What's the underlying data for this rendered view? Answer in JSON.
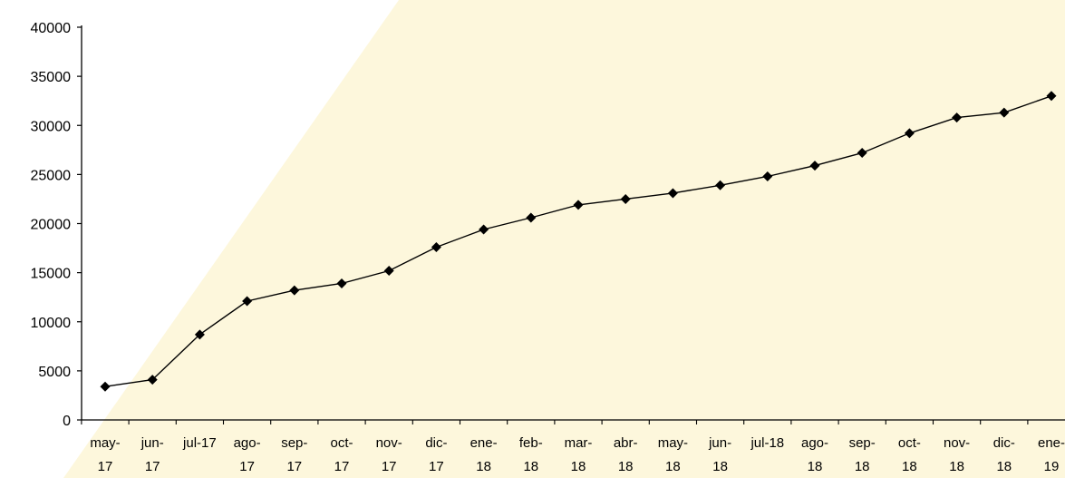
{
  "colors": {
    "plot_background": "#fdf7dc",
    "line": "#000000",
    "marker": "#000000"
  },
  "chart_data": {
    "type": "line",
    "title": "",
    "xlabel": "",
    "ylabel": "",
    "ylim": [
      0,
      40000
    ],
    "yticks": [
      0,
      5000,
      10000,
      15000,
      20000,
      25000,
      30000,
      35000,
      40000
    ],
    "grid": false,
    "legend": "none",
    "marker": "diamond",
    "categories": [
      "may-17",
      "jun-17",
      "jul-17",
      "ago-17",
      "sep-17",
      "oct-17",
      "nov-17",
      "dic-17",
      "ene-18",
      "feb-18",
      "mar-18",
      "abr-18",
      "may-18",
      "jun-18",
      "jul-18",
      "ago-18",
      "sep-18",
      "oct-18",
      "nov-18",
      "dic-18",
      "ene-19"
    ],
    "tick_lines": [
      [
        "may-",
        "17"
      ],
      [
        "jun-",
        "17"
      ],
      [
        "jul-17",
        ""
      ],
      [
        "ago-",
        "17"
      ],
      [
        "sep-",
        "17"
      ],
      [
        "oct-",
        "17"
      ],
      [
        "nov-",
        "17"
      ],
      [
        "dic-",
        "17"
      ],
      [
        "ene-",
        "18"
      ],
      [
        "feb-",
        "18"
      ],
      [
        "mar-",
        "18"
      ],
      [
        "abr-",
        "18"
      ],
      [
        "may-",
        "18"
      ],
      [
        "jun-",
        "18"
      ],
      [
        "jul-18",
        ""
      ],
      [
        "ago-",
        "18"
      ],
      [
        "sep-",
        "18"
      ],
      [
        "oct-",
        "18"
      ],
      [
        "nov-",
        "18"
      ],
      [
        "dic-",
        "18"
      ],
      [
        "ene-",
        "19"
      ]
    ],
    "series": [
      {
        "values": [
          3400,
          4100,
          8700,
          12100,
          13200,
          13900,
          15200,
          17600,
          19400,
          20600,
          21900,
          22500,
          23100,
          23900,
          24800,
          25900,
          27200,
          29200,
          30800,
          31300,
          33000
        ]
      }
    ]
  }
}
